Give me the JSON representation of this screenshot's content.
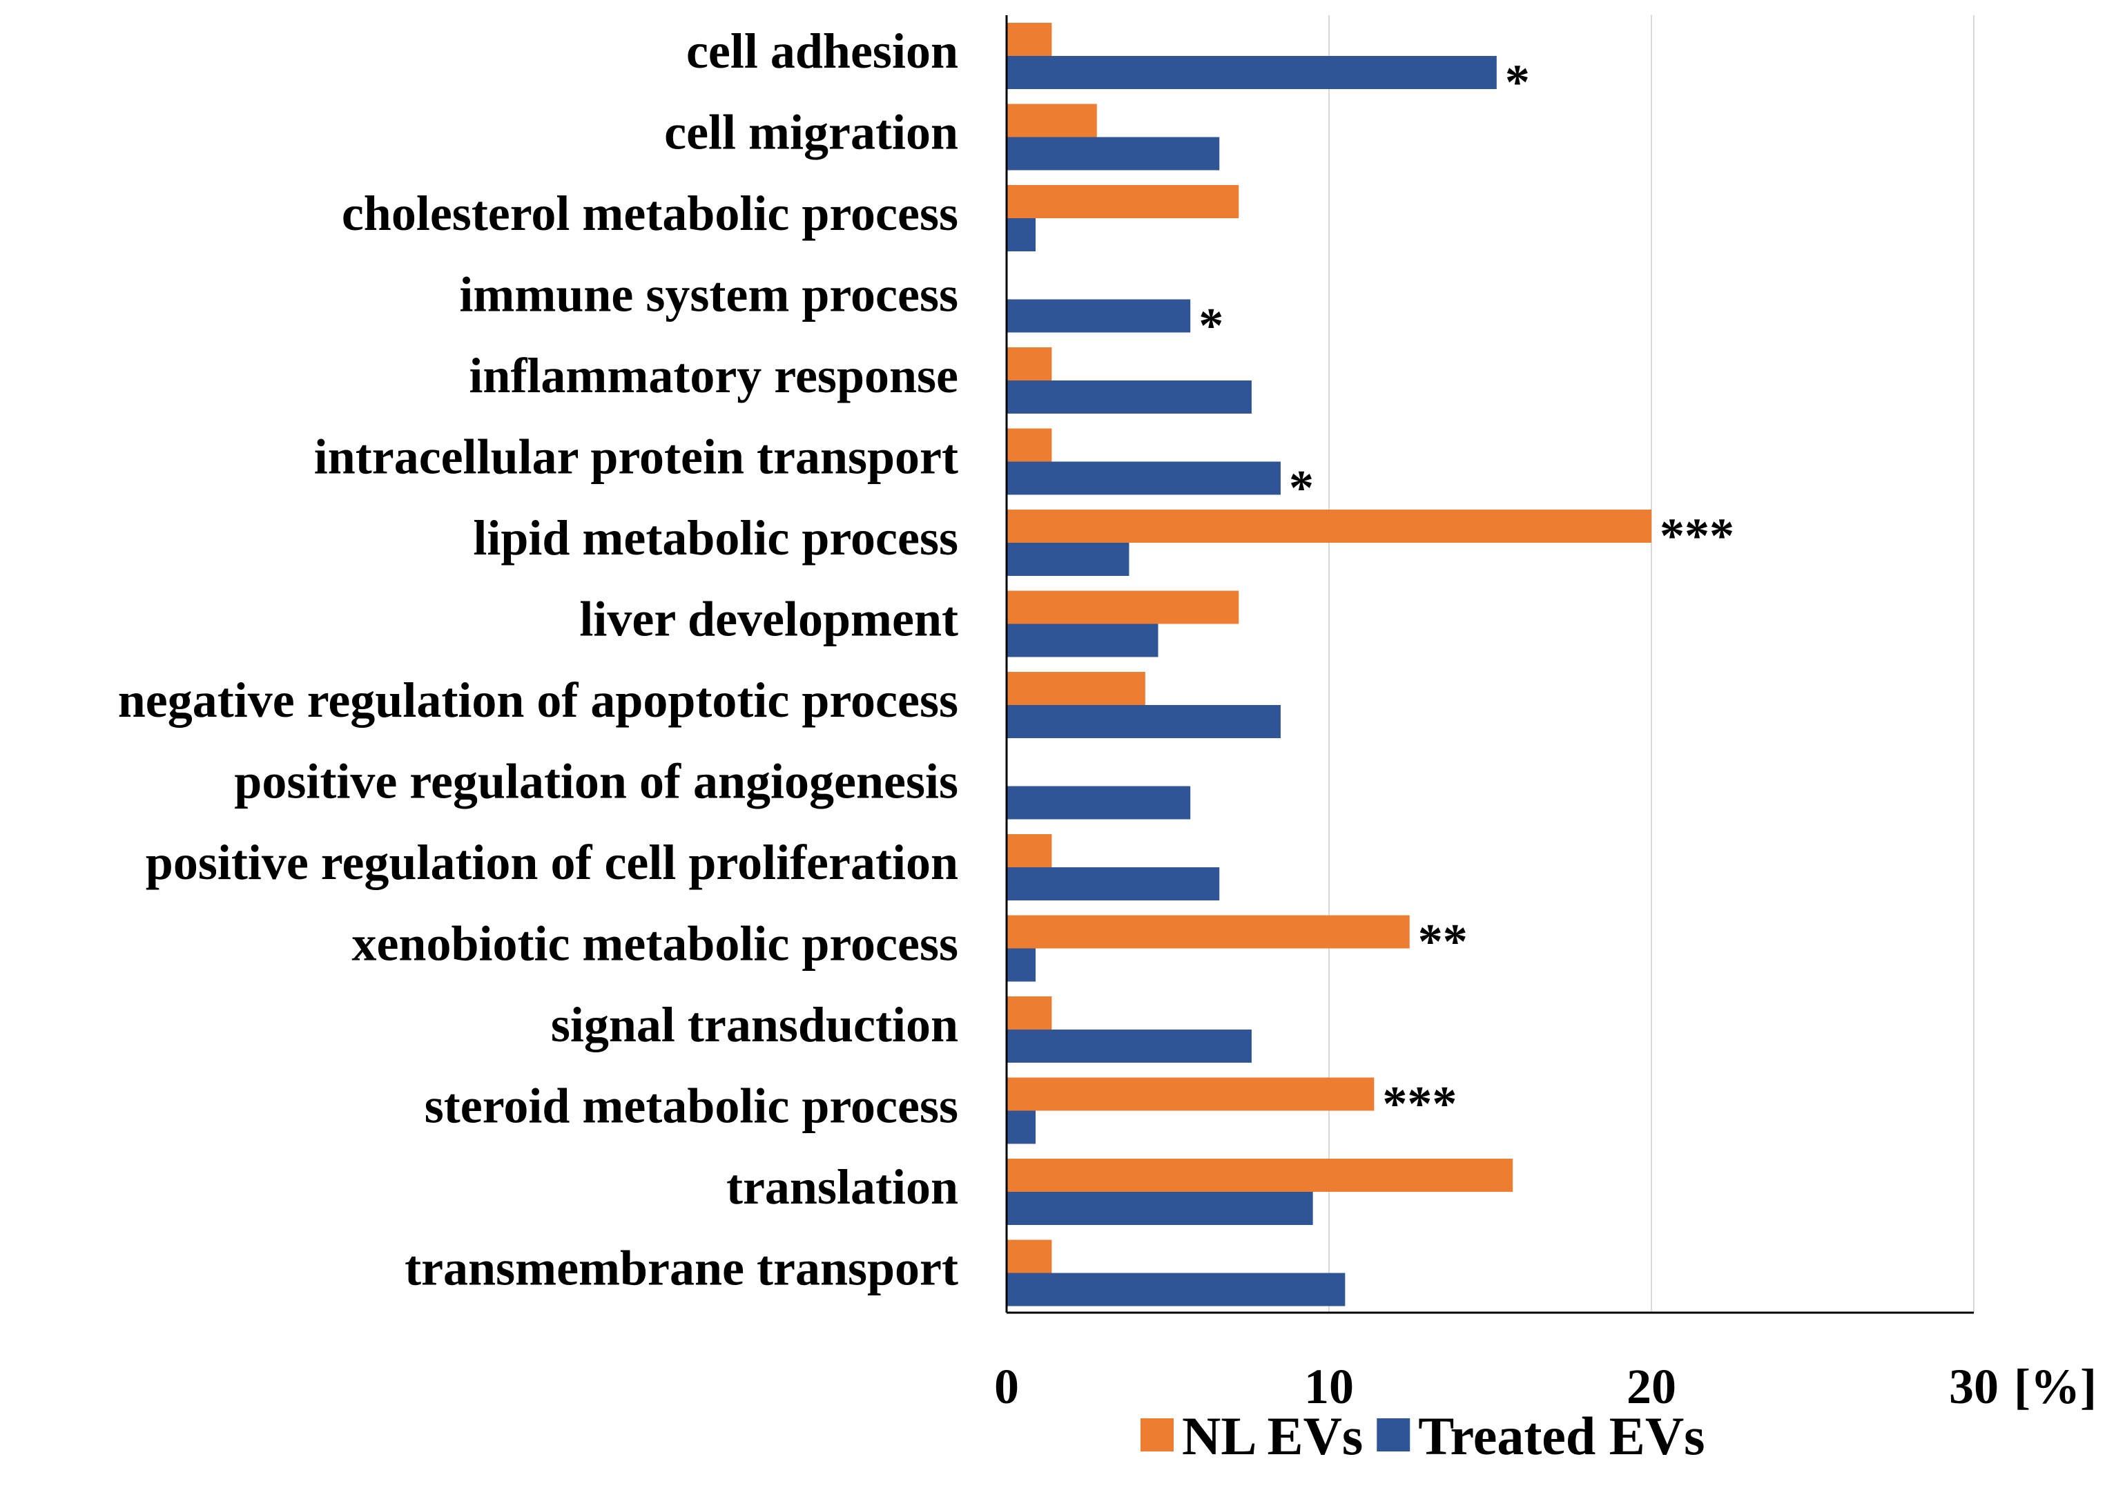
{
  "chart_data": {
    "type": "bar",
    "orientation": "horizontal",
    "categories": [
      "cell adhesion",
      "cell migration",
      "cholesterol metabolic process",
      "immune system process",
      "inflammatory response",
      "intracellular protein transport",
      "lipid metabolic process",
      "liver development",
      "negative regulation of apoptotic process",
      "positive regulation of angiogenesis",
      "positive regulation of cell proliferation",
      "xenobiotic metabolic process",
      "signal transduction",
      "steroid metabolic process",
      "translation",
      "transmembrane transport"
    ],
    "series": [
      {
        "name": "NL EVs",
        "color": "#ED7D31",
        "values": [
          1.4,
          2.8,
          7.2,
          0,
          1.4,
          1.4,
          20.0,
          7.2,
          4.3,
          0,
          1.4,
          12.5,
          1.4,
          11.4,
          15.7,
          1.4
        ],
        "annotations": [
          "",
          "",
          "",
          "",
          "",
          "",
          "***",
          "",
          "",
          "",
          "",
          "**",
          "",
          "***",
          "",
          ""
        ]
      },
      {
        "name": "Treated EVs",
        "color": "#2F5597",
        "values": [
          15.2,
          6.6,
          0.9,
          5.7,
          7.6,
          8.5,
          3.8,
          4.7,
          8.5,
          5.7,
          6.6,
          0.9,
          7.6,
          0.9,
          9.5,
          10.5
        ],
        "annotations": [
          "*",
          "",
          "",
          "*",
          "",
          "*",
          "",
          "",
          "",
          "",
          "",
          "",
          "",
          "",
          "",
          ""
        ]
      }
    ],
    "xlim": [
      0,
      30
    ],
    "xticks": [
      "0",
      "10",
      "20",
      "30"
    ],
    "xunit": "[%]",
    "grid": true,
    "legend": "bottom"
  }
}
